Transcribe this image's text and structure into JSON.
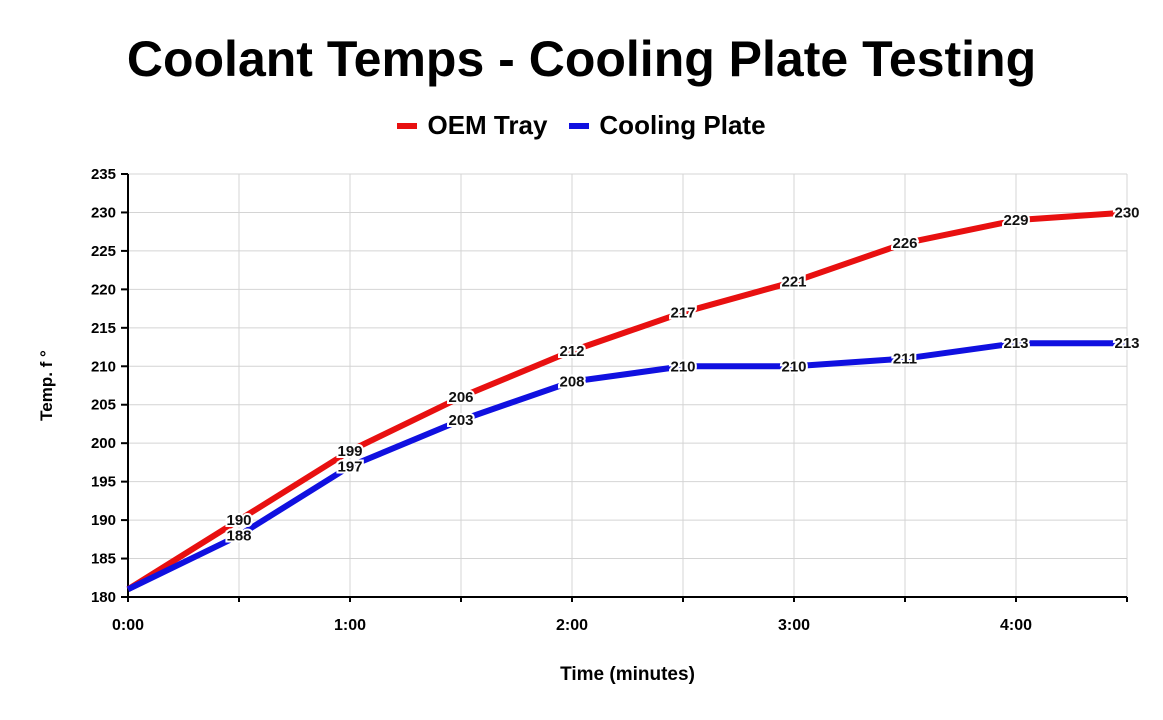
{
  "chart_data": {
    "type": "line",
    "title": "Coolant Temps - Cooling Plate Testing",
    "xlabel": "Time (minutes)",
    "ylabel": "Temp. f °",
    "x": [
      0,
      0.5,
      1,
      1.5,
      2,
      2.5,
      3,
      3.5,
      4,
      4.5
    ],
    "xticks": [
      {
        "v": 0,
        "label": "0:00"
      },
      {
        "v": 1,
        "label": "1:00"
      },
      {
        "v": 2,
        "label": "2:00"
      },
      {
        "v": 3,
        "label": "3:00"
      },
      {
        "v": 4,
        "label": "4:00"
      }
    ],
    "xlim": [
      0,
      4.5
    ],
    "ylim": [
      180,
      235
    ],
    "yticks": [
      180,
      185,
      190,
      195,
      200,
      205,
      210,
      215,
      220,
      225,
      230,
      235
    ],
    "grid": true,
    "legend_position": "top-center",
    "series": [
      {
        "name": "OEM Tray",
        "color": "#e81010",
        "values": [
          181,
          190,
          199,
          206,
          212,
          217,
          221,
          226,
          229,
          230
        ]
      },
      {
        "name": "Cooling Plate",
        "color": "#1010e0",
        "values": [
          181,
          188,
          197,
          203,
          208,
          210,
          210,
          211,
          213,
          213
        ]
      }
    ]
  }
}
